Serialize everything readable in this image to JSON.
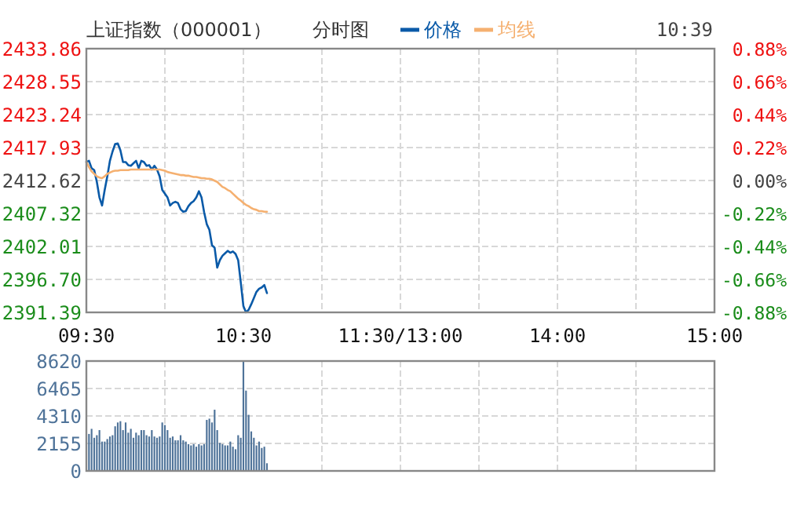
{
  "chart_data": [
    {
      "type": "line",
      "title": "上证指数（000001）",
      "subtitle": "分时图",
      "annotations": [
        "10:39"
      ],
      "legend": "top",
      "grid": true,
      "categories": [
        "09:30",
        null,
        null,
        null,
        null,
        null,
        null,
        null,
        null,
        null,
        null,
        null,
        null,
        null,
        null,
        null,
        null,
        null,
        null,
        null,
        null,
        null,
        null,
        null,
        null,
        null,
        null,
        null,
        null,
        null,
        null,
        null,
        null,
        null,
        null,
        null,
        null,
        null,
        null,
        null,
        null,
        null,
        null,
        null,
        null,
        null,
        null,
        null,
        null,
        null,
        null,
        null,
        null,
        null,
        null,
        null,
        null,
        null,
        null,
        null,
        "10:30",
        null,
        null,
        null,
        null,
        null,
        null,
        null,
        null,
        null,
        null,
        null,
        null,
        null,
        null,
        null,
        null,
        null,
        null,
        null,
        null,
        null,
        null,
        null,
        null,
        null,
        null,
        null,
        null,
        null,
        null,
        null,
        null,
        null,
        null,
        null,
        null,
        null,
        null,
        null,
        null,
        null,
        null,
        null,
        null,
        null,
        null,
        null,
        null,
        null,
        null,
        null,
        null,
        null,
        null,
        null,
        null,
        null,
        null,
        null,
        "11:30/13:00",
        null,
        null,
        null,
        null,
        null,
        null,
        null,
        null,
        null,
        null,
        null,
        null,
        null,
        null,
        null,
        null,
        null,
        null,
        null,
        null,
        null,
        null,
        null,
        null,
        null,
        null,
        null,
        null,
        null,
        null,
        null,
        null,
        null,
        null,
        null,
        null,
        null,
        null,
        null,
        null,
        null,
        null,
        null,
        null,
        null,
        null,
        null,
        null,
        null,
        null,
        null,
        null,
        null,
        null,
        null,
        null,
        null,
        null,
        null,
        "14:00",
        null,
        null,
        null,
        null,
        null,
        null,
        null,
        null,
        null,
        null,
        null,
        null,
        null,
        null,
        null,
        null,
        null,
        null,
        null,
        null,
        null,
        null,
        null,
        null,
        null,
        null,
        null,
        null,
        null,
        null,
        null,
        null,
        null,
        null,
        null,
        null,
        null,
        null,
        null,
        null,
        null,
        null,
        null,
        null,
        null,
        null,
        null,
        null,
        null,
        null,
        null,
        null,
        null,
        null,
        null,
        null,
        null,
        null,
        null,
        "15:00"
      ],
      "ylim": [
        2391.39,
        2433.86
      ],
      "yticks": [
        2391.39,
        {
          "value": 2396.7,
          "label": "2396.70"
        },
        2402.01,
        2407.32,
        2412.62,
        2417.93,
        2423.24,
        2428.55,
        2433.86
      ],
      "y2lim": [
        -0.88,
        0.88
      ],
      "y2ticks": [
        {
          "value": -0.88,
          "label": "-0.88%"
        },
        {
          "value": -0.66,
          "label": "-0.66%"
        },
        {
          "value": -0.44,
          "label": "-0.44%"
        },
        {
          "value": -0.22,
          "label": "-0.22%"
        },
        {
          "value": 0,
          "label": "0.00%"
        },
        {
          "value": 0.22,
          "label": "0.22%"
        },
        {
          "value": 0.44,
          "label": "0.44%"
        },
        {
          "value": 0.66,
          "label": "0.66%"
        },
        {
          "value": 0.88,
          "label": "0.88%"
        }
      ],
      "series": [
        {
          "name": "价格",
          "color": "#0a5aa8",
          "values": [
            2415.6,
            2415.8,
            2414.6,
            2414.3,
            2412.4,
            2409.9,
            2408.6,
            2411.1,
            2413.3,
            2415.8,
            2417.3,
            2418.5,
            2418.6,
            2417.5,
            2415.6,
            2415.6,
            2415.1,
            2415.0,
            2415.4,
            2415.8,
            2414.6,
            2415.8,
            2415.6,
            2415.0,
            2415.1,
            2414.4,
            2415.0,
            2414.4,
            2413.3,
            2411.1,
            2410.5,
            2409.9,
            2408.6,
            2409.0,
            2409.2,
            2409.0,
            2408.0,
            2407.6,
            2407.7,
            2408.5,
            2409.0,
            2409.3,
            2409.9,
            2410.9,
            2409.9,
            2407.5,
            2405.6,
            2404.7,
            2402.2,
            2401.8,
            2398.6,
            2399.8,
            2400.5,
            2400.9,
            2401.3,
            2401.0,
            2401.2,
            2400.8,
            2399.8,
            2396.2,
            2392.4,
            2391.4,
            2391.8,
            2392.7,
            2393.7,
            2394.7,
            2395.2,
            2395.4,
            2395.8,
            2394.5,
            null,
            null,
            null,
            null,
            null,
            null,
            null,
            null,
            null,
            null,
            null,
            null,
            null,
            null,
            null,
            null,
            null,
            null,
            null,
            null,
            null,
            null,
            null,
            null,
            null,
            null,
            null,
            null,
            null,
            null,
            null,
            null,
            null,
            null,
            null,
            null,
            null,
            null,
            null,
            null,
            null,
            null,
            null,
            null,
            null,
            null,
            null,
            null,
            null,
            null,
            null,
            null,
            null,
            null,
            null,
            null,
            null,
            null,
            null,
            null,
            null,
            null,
            null,
            null,
            null,
            null,
            null,
            null,
            null,
            null,
            null,
            null,
            null,
            null,
            null,
            null,
            null,
            null,
            null,
            null,
            null,
            null,
            null,
            null,
            null,
            null,
            null,
            null,
            null,
            null,
            null,
            null,
            null,
            null,
            null,
            null,
            null,
            null,
            null,
            null,
            null,
            null,
            null,
            null,
            null,
            null,
            null,
            null,
            null,
            null,
            null,
            null,
            null,
            null,
            null,
            null,
            null,
            null,
            null,
            null,
            null,
            null,
            null,
            null,
            null,
            null,
            null,
            null,
            null,
            null,
            null,
            null,
            null,
            null,
            null,
            null,
            null,
            null,
            null,
            null,
            null,
            null,
            null,
            null,
            null,
            null,
            null,
            null,
            null,
            null,
            null,
            null,
            null,
            null,
            null,
            null,
            null,
            null,
            null,
            null,
            null,
            null,
            null,
            null,
            null,
            null,
            null,
            null,
            null,
            null,
            null
          ]
        },
        {
          "name": "均线",
          "color": "#f5b070",
          "values": [
            2415.6,
            2414.8,
            2414.1,
            2413.7,
            2413.3,
            2413.1,
            2413.0,
            2413.3,
            2413.7,
            2413.9,
            2414.1,
            2414.2,
            2414.2,
            2414.3,
            2414.3,
            2414.3,
            2414.3,
            2414.4,
            2414.4,
            2414.4,
            2414.4,
            2414.4,
            2414.4,
            2414.4,
            2414.4,
            2414.4,
            2414.4,
            2414.4,
            2414.4,
            2414.3,
            2414.2,
            2414.0,
            2413.9,
            2413.8,
            2413.7,
            2413.6,
            2413.5,
            2413.5,
            2413.4,
            2413.4,
            2413.3,
            2413.2,
            2413.2,
            2413.1,
            2413.0,
            2413.0,
            2412.9,
            2412.9,
            2412.8,
            2412.6,
            2412.4,
            2412.0,
            2411.6,
            2411.4,
            2411.1,
            2410.9,
            2410.5,
            2410.1,
            2409.7,
            2409.4,
            2409.0,
            2408.7,
            2408.5,
            2408.2,
            2408.0,
            2407.9,
            2407.7,
            2407.7,
            2407.6,
            2407.6,
            null,
            null,
            null,
            null,
            null,
            null,
            null,
            null,
            null,
            null,
            null,
            null,
            null,
            null,
            null,
            null,
            null,
            null,
            null,
            null,
            null,
            null,
            null,
            null,
            null,
            null,
            null,
            null,
            null,
            null,
            null,
            null,
            null,
            null,
            null,
            null,
            null,
            null,
            null,
            null,
            null,
            null,
            null,
            null,
            null,
            null,
            null,
            null,
            null,
            null,
            null,
            null,
            null,
            null,
            null,
            null,
            null,
            null,
            null,
            null,
            null,
            null,
            null,
            null,
            null,
            null,
            null,
            null,
            null,
            null,
            null,
            null,
            null,
            null,
            null,
            null,
            null,
            null,
            null,
            null,
            null,
            null,
            null,
            null,
            null,
            null,
            null,
            null,
            null,
            null,
            null,
            null,
            null,
            null,
            null,
            null,
            null,
            null,
            null,
            null,
            null,
            null,
            null,
            null,
            null,
            null,
            null,
            null,
            null,
            null,
            null,
            null,
            null,
            null,
            null,
            null,
            null,
            null,
            null,
            null,
            null,
            null,
            null,
            null,
            null,
            null,
            null,
            null,
            null,
            null,
            null,
            null,
            null,
            null,
            null,
            null,
            null,
            null,
            null,
            null,
            null,
            null,
            null,
            null,
            null,
            null,
            null,
            null,
            null,
            null,
            null,
            null,
            null,
            null,
            null,
            null,
            null,
            null,
            null,
            null,
            null,
            null,
            null,
            null,
            null,
            null,
            null,
            null,
            null,
            null,
            null
          ]
        }
      ]
    },
    {
      "type": "bar",
      "color": "#4f7399",
      "grid": true,
      "tick_labels": "y",
      "categories": [
        null,
        null,
        null,
        null,
        null,
        null,
        null,
        null,
        null,
        null,
        null,
        null,
        null,
        null,
        null,
        null,
        null,
        null,
        null,
        null,
        null,
        null,
        null,
        null,
        null,
        null,
        null,
        null,
        null,
        null,
        null,
        null,
        null,
        null,
        null,
        null,
        null,
        null,
        null,
        null,
        null,
        null,
        null,
        null,
        null,
        null,
        null,
        null,
        null,
        null,
        null,
        null,
        null,
        null,
        null,
        null,
        null,
        null,
        null,
        null,
        null,
        null,
        null,
        null,
        null,
        null,
        null,
        null,
        null,
        null,
        null,
        null,
        null,
        null,
        null,
        null,
        null,
        null,
        null,
        null,
        null,
        null,
        null,
        null,
        null,
        null,
        null,
        null,
        null,
        null,
        null,
        null,
        null,
        null,
        null,
        null,
        null,
        null,
        null,
        null,
        null,
        null,
        null,
        null,
        null,
        null,
        null,
        null,
        null,
        null,
        null,
        null,
        null,
        null,
        null,
        null,
        null,
        null,
        null,
        null,
        null,
        null,
        null,
        null,
        null,
        null,
        null,
        null,
        null,
        null,
        null,
        null,
        null,
        null,
        null,
        null,
        null,
        null,
        null,
        null,
        null,
        null,
        null,
        null,
        null,
        null,
        null,
        null,
        null,
        null,
        null,
        null,
        null,
        null,
        null,
        null,
        null,
        null,
        null,
        null,
        null,
        null,
        null,
        null,
        null,
        null,
        null,
        null,
        null,
        null,
        null,
        null,
        null,
        null,
        null,
        null,
        null,
        null,
        null,
        null,
        null,
        null,
        null,
        null,
        null,
        null,
        null,
        null,
        null,
        null,
        null,
        null,
        null,
        null,
        null,
        null,
        null,
        null,
        null,
        null,
        null,
        null,
        null,
        null,
        null,
        null,
        null,
        null,
        null,
        null,
        null,
        null,
        null,
        null,
        null,
        null,
        null,
        null,
        null,
        null,
        null,
        null,
        null,
        null,
        null,
        null,
        null,
        null,
        null,
        null,
        null,
        null,
        null,
        null,
        null,
        null,
        null,
        null,
        null,
        null,
        null
      ],
      "ylim": [
        0,
        8620
      ],
      "yticks": [
        0,
        2155,
        4310,
        6465,
        8620
      ],
      "values": [
        null,
        2900,
        3300,
        2600,
        2800,
        3200,
        2300,
        2300,
        2500,
        2700,
        2800,
        3500,
        3800,
        3900,
        3200,
        3800,
        3000,
        3300,
        2600,
        3000,
        2800,
        3200,
        3200,
        2800,
        2700,
        3200,
        2700,
        2600,
        2700,
        3800,
        3600,
        3200,
        2600,
        2700,
        2400,
        2400,
        2800,
        2400,
        2300,
        2100,
        2000,
        2100,
        1900,
        2100,
        2000,
        2100,
        4000,
        4100,
        3800,
        4800,
        3200,
        2200,
        2100,
        2000,
        2000,
        2300,
        1900,
        1700,
        2800,
        2600,
        8600,
        6300,
        4400,
        3100,
        2600,
        2000,
        2300,
        1800,
        1900,
        600,
        null,
        null,
        null,
        null,
        null,
        null,
        null,
        null,
        null,
        null,
        null,
        null,
        null,
        null,
        null,
        null,
        null,
        null,
        null,
        null,
        null,
        null,
        null,
        null,
        null,
        null,
        null,
        null,
        null,
        null,
        null,
        null,
        null,
        null,
        null,
        null,
        null,
        null,
        null,
        null,
        null,
        null,
        null,
        null,
        null,
        null,
        null,
        null,
        null,
        null,
        null,
        null,
        null,
        null,
        null,
        null,
        null,
        null,
        null,
        null,
        null,
        null,
        null,
        null,
        null,
        null,
        null,
        null,
        null,
        null,
        null,
        null,
        null,
        null,
        null,
        null,
        null,
        null,
        null,
        null,
        null,
        null,
        null,
        null,
        null,
        null,
        null,
        null,
        null,
        null,
        null,
        null,
        null,
        null,
        null,
        null,
        null,
        null,
        null,
        null,
        null,
        null,
        null,
        null,
        null,
        null,
        null,
        null,
        null,
        null,
        null,
        null,
        null,
        null,
        null,
        null,
        null,
        null,
        null,
        null,
        null,
        null,
        null,
        null,
        null,
        null,
        null,
        null,
        null,
        null,
        null,
        null,
        null,
        null,
        null,
        null,
        null,
        null,
        null,
        null,
        null,
        null,
        null,
        null,
        null,
        null,
        null,
        null,
        null,
        null,
        null,
        null,
        null,
        null,
        null,
        null,
        null,
        null,
        null,
        null,
        null,
        null,
        null,
        null,
        null,
        null,
        null,
        null,
        null,
        null,
        null
      ]
    }
  ]
}
